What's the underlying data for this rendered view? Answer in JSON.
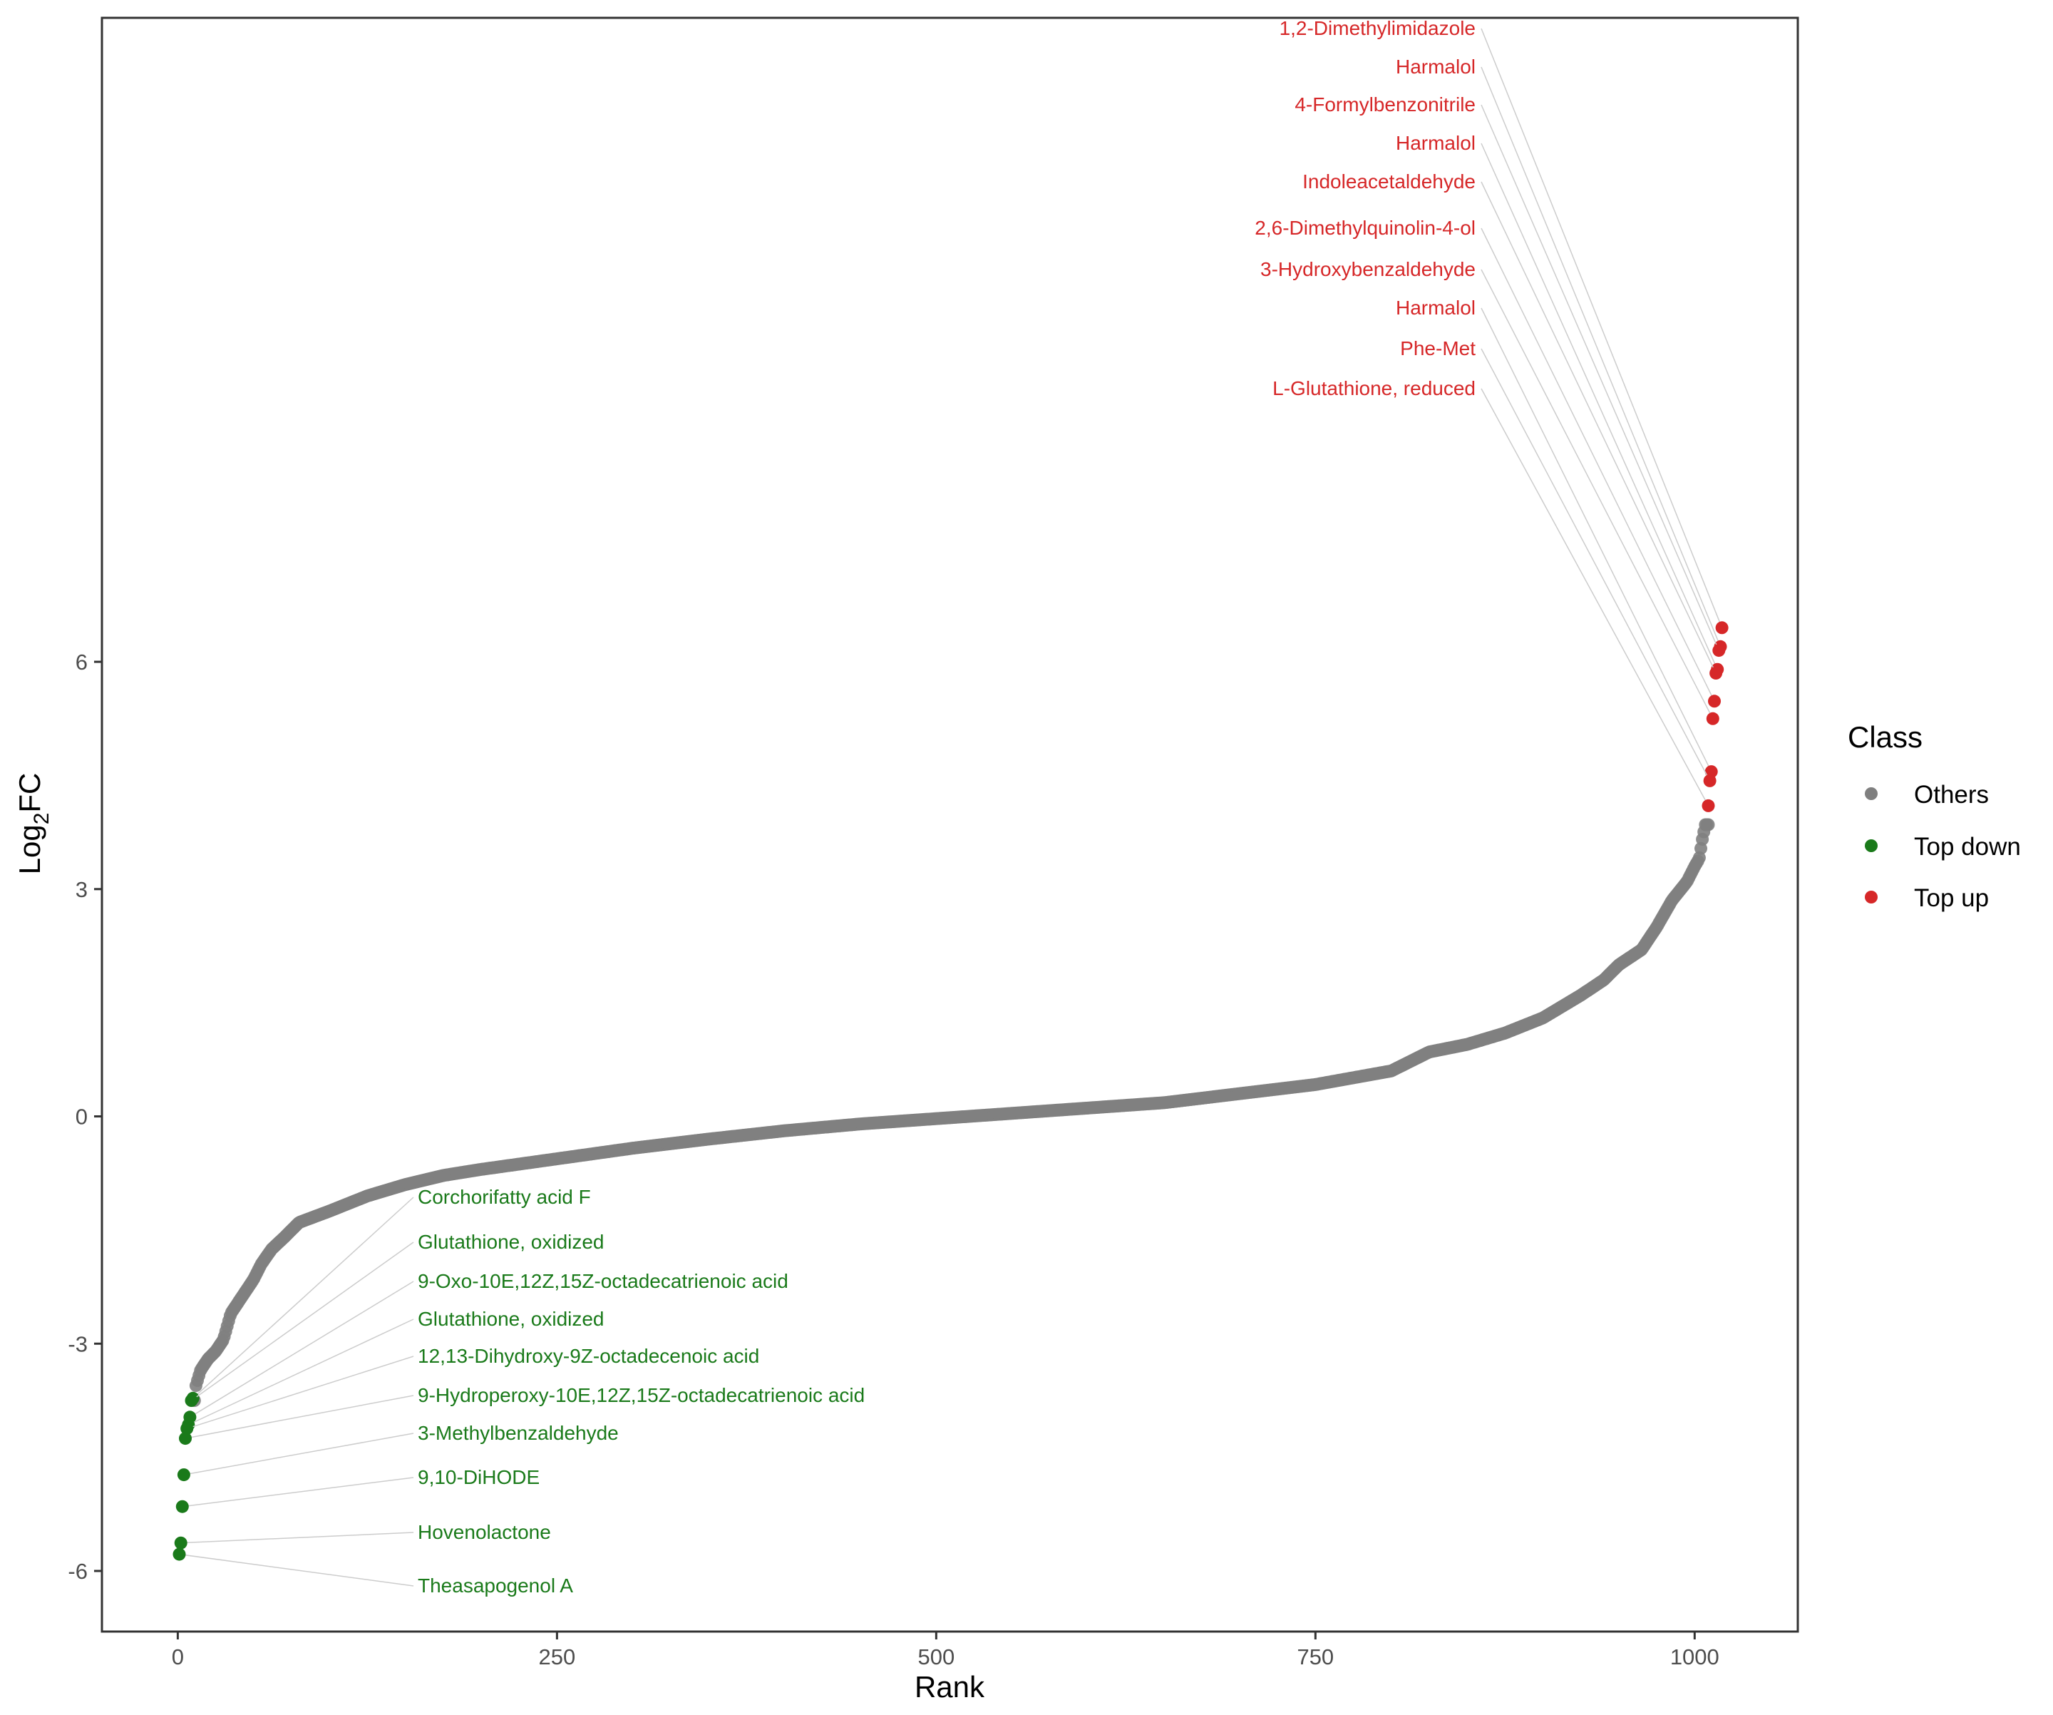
{
  "chart_data": {
    "type": "scatter",
    "xlabel": "Rank",
    "ylabel_main": "Log",
    "ylabel_sub": "2",
    "ylabel_tail": "FC",
    "xlim": [
      -50,
      1068
    ],
    "ylim": [
      -6.8,
      14.5
    ],
    "display_ylim": [
      -6.8,
      14.5
    ],
    "x_ticks": [
      0,
      250,
      500,
      750,
      1000
    ],
    "x_tick_labels": [
      "0",
      "250",
      "500",
      "750",
      "1000"
    ],
    "y_ticks": [
      -6,
      -3,
      0,
      3,
      6
    ],
    "y_tick_labels": [
      "-6",
      "-3",
      "0",
      "3",
      "6"
    ],
    "grid": false,
    "legend": {
      "title": "Class",
      "placement": "right",
      "items": [
        {
          "label": "Others",
          "color": "#7f7f7f"
        },
        {
          "label": "Top down",
          "color": "#1a7a1a"
        },
        {
          "label": "Top up",
          "color": "#d62728"
        }
      ]
    },
    "others_curve": {
      "color": "#7f7f7f",
      "n_points": 1018,
      "rank_start": 11,
      "rank_end": 1009,
      "anchors": [
        [
          11,
          -3.75
        ],
        [
          12,
          -3.55
        ],
        [
          15,
          -3.35
        ],
        [
          20,
          -3.2
        ],
        [
          25,
          -3.1
        ],
        [
          30,
          -2.95
        ],
        [
          35,
          -2.6
        ],
        [
          40,
          -2.45
        ],
        [
          45,
          -2.3
        ],
        [
          50,
          -2.15
        ],
        [
          55,
          -1.95
        ],
        [
          62,
          -1.75
        ],
        [
          70,
          -1.6
        ],
        [
          80,
          -1.4
        ],
        [
          100,
          -1.25
        ],
        [
          125,
          -1.05
        ],
        [
          150,
          -0.9
        ],
        [
          175,
          -0.78
        ],
        [
          200,
          -0.7
        ],
        [
          250,
          -0.56
        ],
        [
          300,
          -0.42
        ],
        [
          350,
          -0.3
        ],
        [
          400,
          -0.19
        ],
        [
          450,
          -0.1
        ],
        [
          500,
          -0.03
        ],
        [
          550,
          0.04
        ],
        [
          600,
          0.11
        ],
        [
          650,
          0.18
        ],
        [
          700,
          0.3
        ],
        [
          750,
          0.42
        ],
        [
          800,
          0.6
        ],
        [
          825,
          0.85
        ],
        [
          850,
          0.95
        ],
        [
          875,
          1.1
        ],
        [
          900,
          1.3
        ],
        [
          925,
          1.6
        ],
        [
          940,
          1.8
        ],
        [
          950,
          2.0
        ],
        [
          965,
          2.2
        ],
        [
          975,
          2.5
        ],
        [
          985,
          2.85
        ],
        [
          995,
          3.1
        ],
        [
          1000,
          3.3
        ],
        [
          1003,
          3.4
        ],
        [
          1005,
          3.65
        ],
        [
          1007,
          3.85
        ],
        [
          1009,
          3.85
        ]
      ]
    },
    "series": [
      {
        "name": "Top up",
        "color": "#d62728",
        "points": [
          {
            "x": 1018,
            "y": 6.45,
            "label": "1,2-Dimethylimidazole"
          },
          {
            "x": 1017,
            "y": 6.2,
            "label": "Harmalol"
          },
          {
            "x": 1016,
            "y": 6.15,
            "label": "4-Formylbenzonitrile"
          },
          {
            "x": 1015,
            "y": 5.9,
            "label": "Harmalol"
          },
          {
            "x": 1014,
            "y": 5.85,
            "label": "Indoleacetaldehyde"
          },
          {
            "x": 1013,
            "y": 5.48,
            "label": "2,6-Dimethylquinolin-4-ol"
          },
          {
            "x": 1012,
            "y": 5.25,
            "label": "3-Hydroxybenzaldehyde"
          },
          {
            "x": 1011,
            "y": 4.55,
            "label": "Harmalol"
          },
          {
            "x": 1010,
            "y": 4.43,
            "label": "Phe-Met"
          },
          {
            "x": 1009,
            "y": 4.1,
            "label": "L-Glutathione, reduced"
          }
        ]
      },
      {
        "name": "Top down",
        "color": "#1a7a1a",
        "points": [
          {
            "x": 10,
            "y": -3.72,
            "label": "Corchorifatty acid F"
          },
          {
            "x": 9,
            "y": -3.75,
            "label": "Glutathione, oxidized"
          },
          {
            "x": 8,
            "y": -3.97,
            "label": "9-Oxo-10E,12Z,15Z-octadecatrienoic acid"
          },
          {
            "x": 7,
            "y": -4.07,
            "label": "Glutathione, oxidized"
          },
          {
            "x": 6,
            "y": -4.12,
            "label": "12,13-Dihydroxy-9Z-octadecenoic acid"
          },
          {
            "x": 5,
            "y": -4.25,
            "label": "9-Hydroperoxy-10E,12Z,15Z-octadecatrienoic acid"
          },
          {
            "x": 4,
            "y": -4.73,
            "label": "3-Methylbenzaldehyde"
          },
          {
            "x": 3,
            "y": -5.15,
            "label": "9,10-DiHODE"
          },
          {
            "x": 2,
            "y": -5.63,
            "label": "Hovenolactone"
          },
          {
            "x": 1,
            "y": -5.78,
            "label": "Theasapogenol A"
          }
        ]
      }
    ]
  }
}
